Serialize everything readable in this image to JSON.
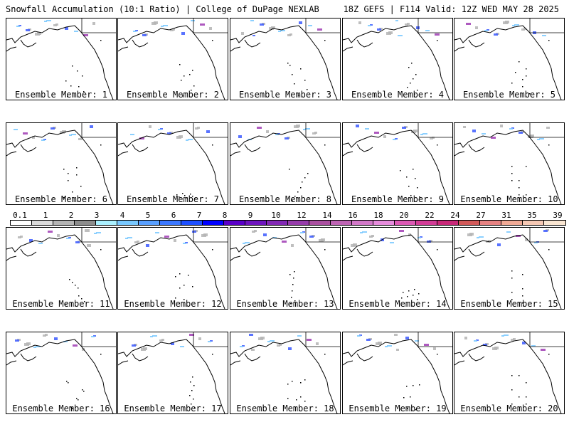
{
  "header": {
    "left": "Snowfall Accumulation (10:1 Ratio) | College of DuPage NEXLAB",
    "right": "18Z GEFS | F114 Valid: 12Z WED MAY 28 2025"
  },
  "panels": [
    {
      "caption": "Ensemble Member: 1"
    },
    {
      "caption": "Ensemble Member: 2"
    },
    {
      "caption": "Ensemble Member: 3"
    },
    {
      "caption": "Ensemble Member: 4"
    },
    {
      "caption": "Ensemble Member: 5"
    },
    {
      "caption": "Ensemble Member: 6"
    },
    {
      "caption": "Ensemble Member: 7"
    },
    {
      "caption": "Ensemble Member: 8"
    },
    {
      "caption": "Ensemble Member: 9"
    },
    {
      "caption": "Ensemble Member: 10"
    },
    {
      "caption": "Ensemble Member: 11"
    },
    {
      "caption": "Ensemble Member: 12"
    },
    {
      "caption": "Ensemble Member: 13"
    },
    {
      "caption": "Ensemble Member: 14"
    },
    {
      "caption": "Ensemble Member: 15"
    },
    {
      "caption": "Ensemble Member: 16"
    },
    {
      "caption": "Ensemble Member: 17"
    },
    {
      "caption": "Ensemble Member: 18"
    },
    {
      "caption": "Ensemble Member: 19"
    },
    {
      "caption": "Ensemble Member: 20"
    }
  ],
  "colorbar": {
    "labels": [
      "0.1",
      "1",
      "2",
      "3",
      "4",
      "5",
      "6",
      "7",
      "8",
      "9",
      "10",
      "12",
      "14",
      "16",
      "18",
      "20",
      "22",
      "24",
      "27",
      "31",
      "35",
      "39"
    ],
    "colors": [
      "#ffffff",
      "#dcdcdc",
      "#b4b4b4",
      "#8c8c8c",
      "#aaf0ff",
      "#78c8ff",
      "#5aa0ff",
      "#3c78ff",
      "#1e50ff",
      "#0000ff",
      "#5a00c8",
      "#6e14be",
      "#8228b4",
      "#963caa",
      "#aa50a0",
      "#be64b4",
      "#d278c8",
      "#e68cdc",
      "#dc5ab4",
      "#d23c96",
      "#c82878",
      "#d25a5a",
      "#e68282",
      "#f0aa96",
      "#f5c8b4",
      "#fae6d2"
    ]
  }
}
